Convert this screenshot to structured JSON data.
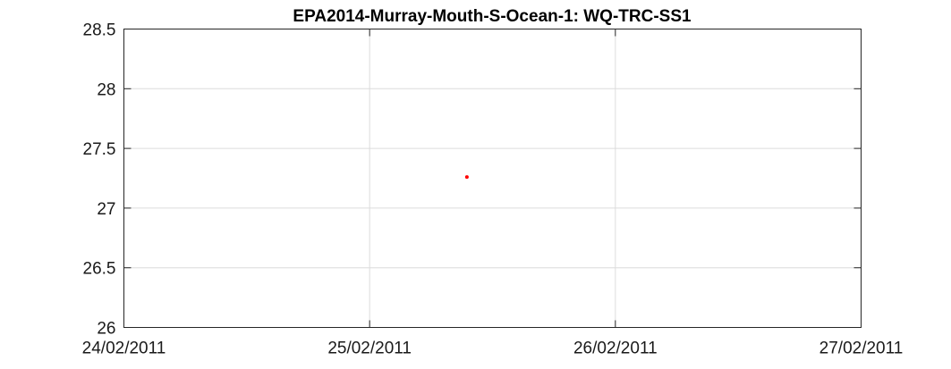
{
  "chart_data": {
    "type": "scatter",
    "title": "EPA2014-Murray-Mouth-S-Ocean-1: WQ-TRC-SS1",
    "xlabel": "",
    "ylabel": "",
    "xlim": [
      "24/02/2011",
      "27/02/2011"
    ],
    "ylim": [
      26,
      28.5
    ],
    "x_ticks": [
      "24/02/2011",
      "25/02/2011",
      "26/02/2011",
      "27/02/2011"
    ],
    "y_ticks": [
      "26",
      "26.5",
      "27",
      "27.5",
      "28",
      "28.5"
    ],
    "grid": true,
    "series": [
      {
        "color": "#ff0000",
        "points": [
          {
            "x": "25/02/2011 09:30",
            "y": 27.26
          }
        ]
      }
    ]
  }
}
